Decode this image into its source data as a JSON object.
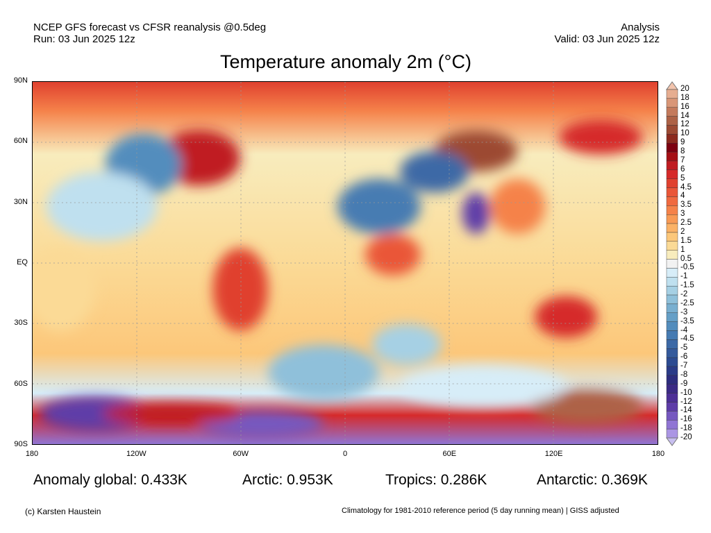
{
  "header": {
    "left_line1": "NCEP GFS forecast vs CFSR reanalysis @0.5deg",
    "left_line2": "Run: 03 Jun 2025 12z",
    "right_line1": "Analysis",
    "right_line2": "Valid: 03 Jun 2025 12z"
  },
  "chart_data": {
    "type": "heatmap",
    "title": "Temperature anomaly 2m (°C)",
    "y_ticks": [
      "90N",
      "60N",
      "30N",
      "EQ",
      "30S",
      "60S",
      "90S"
    ],
    "x_ticks": [
      "180",
      "120W",
      "60W",
      "0",
      "60E",
      "120E",
      "180"
    ],
    "xlim": [
      -180,
      180
    ],
    "ylim": [
      -90,
      90
    ],
    "grid": true,
    "colorbar": {
      "labels": [
        "20",
        "18",
        "16",
        "14",
        "12",
        "10",
        "9",
        "8",
        "7",
        "6",
        "5",
        "4.5",
        "4",
        "3.5",
        "3",
        "2.5",
        "2",
        "1.5",
        "1",
        "0.5",
        "-0.5",
        "-1",
        "-1.5",
        "-2",
        "-2.5",
        "-3",
        "-3.5",
        "-4",
        "-4.5",
        "-5",
        "-6",
        "-7",
        "-8",
        "-9",
        "-10",
        "-12",
        "-14",
        "-16",
        "-18",
        "-20"
      ],
      "colors": [
        "#f2c4ad",
        "#e6ad90",
        "#d99677",
        "#c47a5c",
        "#ad6246",
        "#9c4a33",
        "#8c2a1e",
        "#7d0010",
        "#a50f15",
        "#c01c22",
        "#d62a2a",
        "#e0412f",
        "#ea5638",
        "#f06a40",
        "#f5824a",
        "#f89a55",
        "#fbb266",
        "#fcc77a",
        "#fbda96",
        "#f8ecbd",
        "#f2f2f2",
        "#d7edf8",
        "#bfe0ef",
        "#a6d0e4",
        "#8fc0da",
        "#79afd0",
        "#659fc7",
        "#538dbd",
        "#467bb2",
        "#3c69a6",
        "#345a9c",
        "#2c4b92",
        "#2a3b88",
        "#2d2d7e",
        "#3b2a85",
        "#4d2f96",
        "#5e3ca8",
        "#7658c0",
        "#9075d4",
        "#ab96e4",
        "#c8bff0"
      ],
      "range": [
        -20,
        20
      ]
    },
    "stats": {
      "global": "Anomaly global: 0.433K",
      "arctic": "Arctic: 0.953K",
      "tropics": "Tropics: 0.286K",
      "antarctic": "Antarctic: 0.369K"
    }
  },
  "footer": {
    "left": "(c) Karsten Haustein",
    "right": "Climatology for 1981-2010 reference period (5 day running mean) | GISS adjusted"
  }
}
